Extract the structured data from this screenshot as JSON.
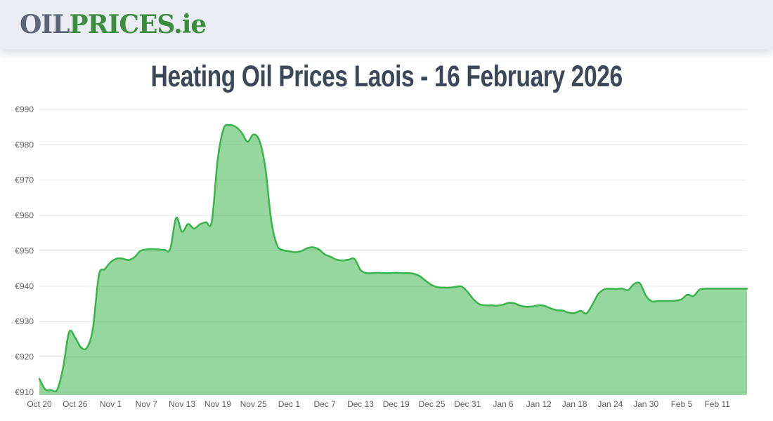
{
  "header": {
    "logo": {
      "oil": "OIL",
      "prices": "PRICES",
      "tld": ".ie"
    }
  },
  "title": "Heating Oil Prices Laois - 16 February 2026",
  "chart_data": {
    "type": "area",
    "title": "Heating Oil Prices Laois - 16 February 2026",
    "currency_prefix": "€",
    "x_start": "Oct 20",
    "x_end": "Feb 16",
    "frequency": "daily",
    "x_label_interval_days": 6,
    "x_tick_labels": [
      "Oct 20",
      "Oct 26",
      "Nov 1",
      "Nov 7",
      "Nov 13",
      "Nov 19",
      "Nov 25",
      "Dec 1",
      "Dec 7",
      "Dec 13",
      "Dec 19",
      "Dec 25",
      "Dec 31",
      "Jan 6",
      "Jan 12",
      "Jan 18",
      "Jan 24",
      "Jan 30",
      "Feb 5",
      "Feb 11"
    ],
    "y_ticks": [
      910,
      920,
      930,
      940,
      950,
      960,
      970,
      980,
      990
    ],
    "ylim": [
      909.2,
      990
    ],
    "grid": "horizontal",
    "legend": false,
    "values": [
      913.8,
      910.8,
      910.6,
      910.7,
      917.0,
      927.0,
      925.5,
      922.7,
      922.6,
      928.0,
      943.0,
      944.8,
      946.8,
      947.8,
      947.8,
      947.4,
      948.2,
      950.0,
      950.4,
      950.5,
      950.4,
      950.3,
      950.5,
      959.3,
      955.4,
      957.6,
      956.3,
      957.5,
      958.1,
      958.3,
      976.0,
      984.6,
      985.6,
      985.1,
      983.5,
      980.9,
      982.9,
      981.2,
      973.5,
      958.5,
      951.5,
      950.2,
      949.9,
      949.6,
      949.9,
      950.7,
      951.0,
      950.4,
      949.0,
      948.3,
      947.5,
      947.3,
      947.5,
      947.7,
      944.6,
      943.7,
      943.7,
      943.8,
      943.7,
      943.7,
      943.8,
      943.7,
      943.7,
      943.5,
      942.8,
      941.5,
      940.3,
      939.7,
      939.6,
      939.6,
      939.8,
      939.9,
      938.4,
      936.3,
      934.9,
      934.6,
      934.6,
      934.5,
      934.8,
      935.3,
      935.1,
      934.4,
      934.2,
      934.3,
      934.6,
      934.4,
      933.7,
      933.2,
      933.1,
      932.5,
      932.4,
      933.0,
      932.3,
      934.8,
      937.8,
      939.1,
      939.3,
      939.2,
      939.3,
      938.9,
      940.6,
      940.8,
      937.3,
      935.7,
      935.8,
      935.8,
      935.8,
      935.9,
      936.3,
      937.6,
      937.2,
      939.0,
      939.3,
      939.3,
      939.3,
      939.3,
      939.3,
      939.3,
      939.3,
      939.3
    ],
    "colors": {
      "line": "#39b44a",
      "fill": "rgba(57,180,74,0.53)",
      "grid": "#e4e4e4",
      "axis_text": "#666666",
      "plot_background": "#ffffff"
    }
  }
}
